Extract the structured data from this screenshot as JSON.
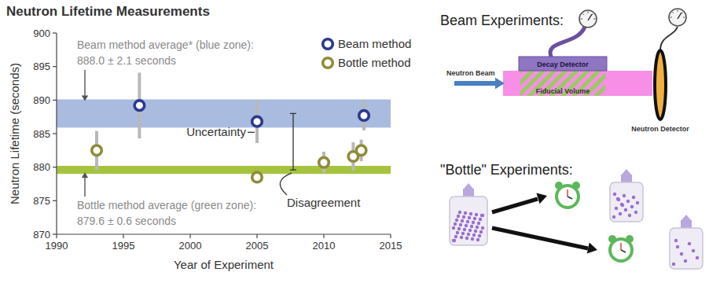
{
  "chart_data": {
    "type": "scatter",
    "title": "Neutron Lifetime Measurements",
    "xlabel": "Year of Experiment",
    "ylabel": "Neutron Lifetime (seconds)",
    "xlim": [
      1990,
      2015
    ],
    "ylim": [
      870,
      900
    ],
    "xticks": [
      1990,
      1995,
      2000,
      2005,
      2010,
      2015
    ],
    "yticks": [
      870,
      875,
      880,
      885,
      890,
      895,
      900
    ],
    "grid": false,
    "legend": "top-right",
    "series": [
      {
        "name": "Beam method",
        "color": "#2b3990",
        "marker": "circle",
        "x": [
          1996.2,
          2005,
          2013
        ],
        "values": [
          889.2,
          886.8,
          887.7
        ],
        "errors": [
          4.9,
          3.2,
          2.2
        ]
      },
      {
        "name": "Bottle method",
        "color": "#8f8c3b",
        "marker": "circle",
        "x": [
          1993,
          2005,
          2010,
          2012.2,
          2012.8
        ],
        "values": [
          882.5,
          878.5,
          880.7,
          881.6,
          882.5
        ],
        "errors": [
          2.9,
          0.8,
          1.6,
          2.1,
          1.6
        ]
      }
    ],
    "bands": [
      {
        "label": "Beam method average* (blue zone):",
        "value_label": "888.0 ± 2.1 seconds",
        "value": 888.0,
        "error": 2.1,
        "color": "#a9bbdf"
      },
      {
        "label": "Bottle method average (green zone):",
        "value_label": "879.6 ± 0.6 seconds",
        "value": 879.6,
        "error": 0.6,
        "color": "#a6c33f"
      }
    ],
    "annotations": [
      "Uncertainty",
      "Disagreement"
    ]
  },
  "diagram": {
    "beam": {
      "title": "Beam Experiments:",
      "beam_label": "Neutron Beam",
      "decay_detector": "Decay Detector",
      "fiducial_volume": "Fiducial Volume",
      "neutron_detector": "Neutron Detector"
    },
    "bottle": {
      "title": "\"Bottle\" Experiments:"
    }
  }
}
